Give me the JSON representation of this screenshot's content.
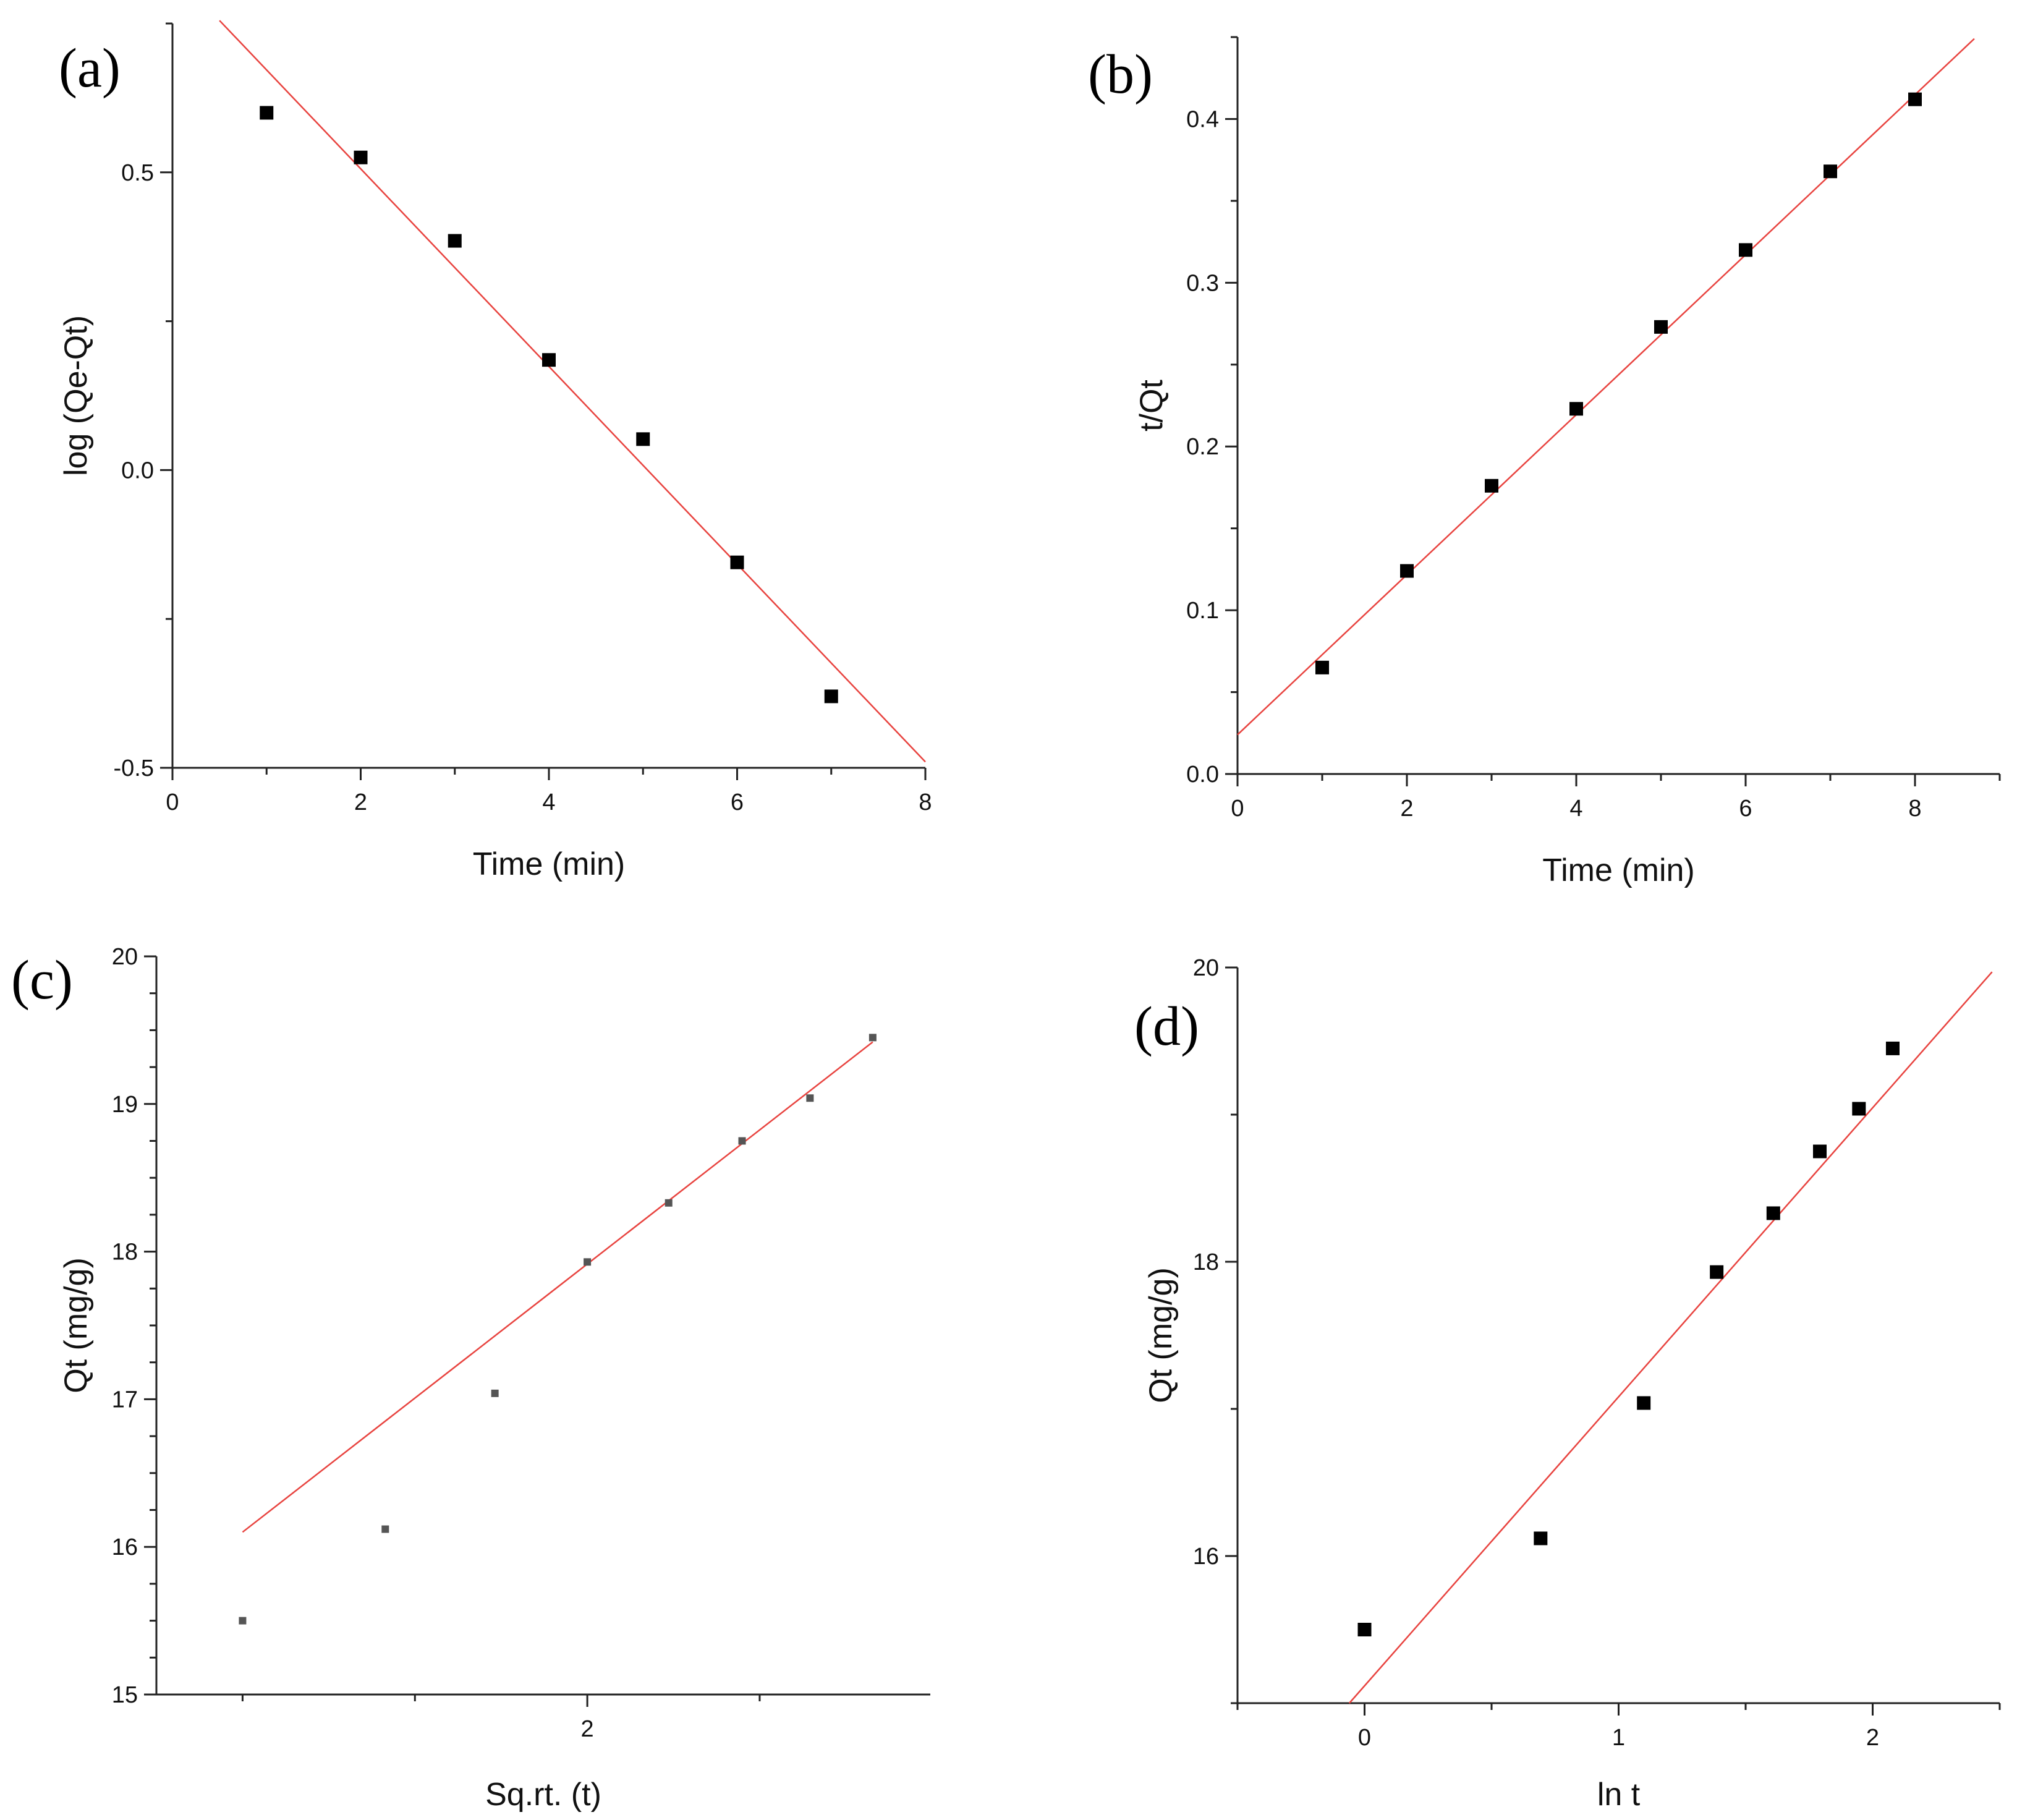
{
  "chart_data": [
    {
      "type": "scatter",
      "panel_label": "(a)",
      "title": "",
      "xlabel": "Time (min)",
      "ylabel": "log (Qe-Qt)",
      "xlim": [
        0,
        8
      ],
      "ylim": [
        -0.5,
        0.75
      ],
      "xticks": [
        0,
        2,
        4,
        6,
        8
      ],
      "xtick_labels": [
        "0",
        "2",
        "4",
        "6",
        "8"
      ],
      "yticks": [
        -0.5,
        0.0,
        0.5
      ],
      "ytick_labels": [
        "-0.5",
        "0.0",
        "0.5"
      ],
      "series": [
        {
          "name": "data",
          "x": [
            1,
            2,
            3,
            4,
            5,
            6,
            7
          ],
          "y": [
            0.6,
            0.525,
            0.385,
            0.185,
            0.052,
            -0.155,
            -0.38
          ]
        }
      ],
      "fit": {
        "x": [
          0.5,
          8.0
        ],
        "y": [
          0.755,
          -0.49
        ]
      },
      "marker": "square"
    },
    {
      "type": "scatter",
      "panel_label": "(b)",
      "title": "",
      "xlabel": "Time (min)",
      "ylabel": "t/Qt",
      "xlim": [
        0,
        9
      ],
      "ylim": [
        0,
        0.45
      ],
      "xticks": [
        0,
        2,
        4,
        6,
        8
      ],
      "xtick_labels": [
        "0",
        "2",
        "4",
        "6",
        "8"
      ],
      "yticks": [
        0.0,
        0.1,
        0.2,
        0.3,
        0.4
      ],
      "ytick_labels": [
        "0.0",
        "0.1",
        "0.2",
        "0.3",
        "0.4"
      ],
      "series": [
        {
          "name": "data",
          "x": [
            1,
            2,
            3,
            4,
            5,
            6,
            7,
            8
          ],
          "y": [
            0.065,
            0.124,
            0.176,
            0.223,
            0.273,
            0.32,
            0.368,
            0.412
          ]
        }
      ],
      "fit": {
        "x": [
          0,
          8.7
        ],
        "y": [
          0.024,
          0.449
        ]
      },
      "marker": "square"
    },
    {
      "type": "scatter",
      "panel_label": "(c)",
      "title": "",
      "xlabel": "Sq.rt. (t)",
      "ylabel": "Qt (mg/g)",
      "xlim": [
        0.75,
        2.995
      ],
      "ylim": [
        15,
        20
      ],
      "xticks": [
        2
      ],
      "xtick_labels": [
        "2"
      ],
      "yticks": [
        15,
        16,
        17,
        18,
        19,
        20
      ],
      "ytick_labels": [
        "15",
        "16",
        "17",
        "18",
        "19",
        "20"
      ],
      "series": [
        {
          "name": "data",
          "x": [
            1.0,
            1.414,
            1.732,
            2.0,
            2.236,
            2.449,
            2.646,
            2.828
          ],
          "y": [
            15.5,
            16.12,
            17.04,
            17.93,
            18.33,
            18.75,
            19.04,
            19.45
          ]
        }
      ],
      "fit": {
        "x": [
          1.0,
          2.828
        ],
        "y": [
          16.1,
          19.42
        ]
      },
      "marker": "small-square"
    },
    {
      "type": "scatter",
      "panel_label": "(d)",
      "title": "",
      "xlabel": "ln t",
      "ylabel": "Qt (mg/g)",
      "xlim": [
        -0.5,
        2.5
      ],
      "ylim": [
        15,
        20
      ],
      "xticks": [
        0,
        1,
        2
      ],
      "xtick_labels": [
        "0",
        "1",
        "2"
      ],
      "yticks": [
        16,
        18,
        20
      ],
      "ytick_labels": [
        "16",
        "18",
        "20"
      ],
      "series": [
        {
          "name": "data",
          "x": [
            0,
            0.693,
            1.099,
            1.386,
            1.609,
            1.792,
            1.946,
            2.079
          ],
          "y": [
            15.5,
            16.12,
            17.04,
            17.93,
            18.33,
            18.75,
            19.04,
            19.45
          ]
        }
      ],
      "fit": {
        "x": [
          -0.06,
          2.47
        ],
        "y": [
          15.0,
          19.97
        ]
      },
      "marker": "square"
    }
  ]
}
